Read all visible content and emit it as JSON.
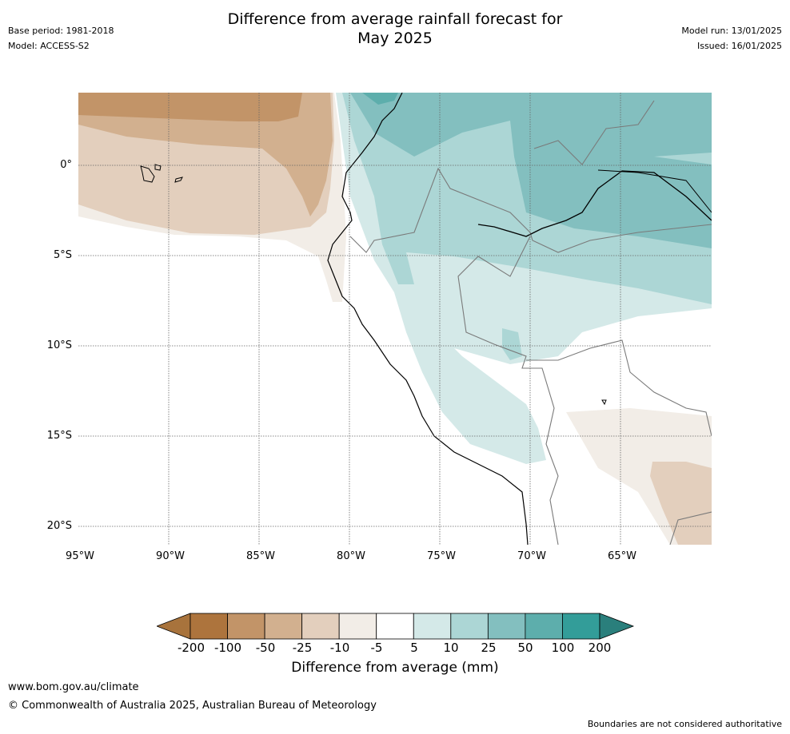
{
  "header": {
    "title_line1": "Difference from average rainfall forecast for",
    "title_line2": "May 2025",
    "base_period": "Base period: 1981-2018",
    "model": "Model: ACCESS-S2",
    "model_run": "Model run: 13/01/2025",
    "issued": "Issued: 16/01/2025"
  },
  "map": {
    "lat_labels": [
      "0°",
      "5°S",
      "10°S",
      "15°S",
      "20°S"
    ],
    "lon_labels": [
      "95°W",
      "90°W",
      "85°W",
      "80°W",
      "75°W",
      "70°W",
      "65°W"
    ]
  },
  "colorbar": {
    "title": "Difference from average (mm)",
    "tick_labels": [
      "-200",
      "-100",
      "-50",
      "-25",
      "-10",
      "-5",
      "5",
      "10",
      "25",
      "50",
      "100",
      "200"
    ],
    "colors": [
      "#a8733c",
      "#ad743d",
      "#c29468",
      "#d2b08f",
      "#e3cfbd",
      "#f2ede7",
      "#ffffff",
      "#d4e9e8",
      "#acd6d5",
      "#83bfbf",
      "#5daeac",
      "#339d99",
      "#2a7f7c"
    ]
  },
  "footer": {
    "website": "www.bom.gov.au/climate",
    "copyright": "© Commonwealth of Australia 2025, Australian Bureau of Meteorology",
    "disclaimer": "Boundaries are not considered authoritative"
  }
}
